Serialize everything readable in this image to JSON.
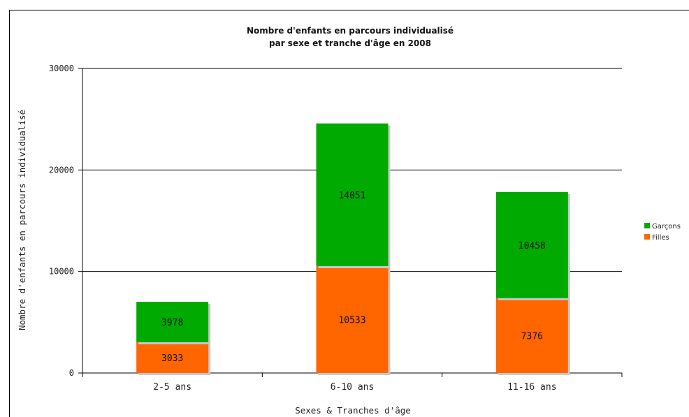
{
  "chart_data": {
    "type": "bar",
    "stacked": true,
    "title": [
      "Nombre d'enfants en parcours individualisé",
      "par sexe et tranche d'âge en 2008"
    ],
    "xlabel": "Sexes & Tranches d'âge",
    "ylabel": "Nombre d'enfants en parcours individualisé",
    "categories": [
      "2-5 ans",
      "6-10 ans",
      "11-16 ans"
    ],
    "ylim": [
      0,
      30000
    ],
    "yticks": [
      0,
      10000,
      20000,
      30000
    ],
    "grid": true,
    "legend_position": "right",
    "series": [
      {
        "name": "Filles",
        "values": [
          3033,
          10533,
          7376
        ],
        "color": "#ff6600"
      },
      {
        "name": "Garçons",
        "values": [
          3978,
          14051,
          10458
        ],
        "color": "#00aa00"
      }
    ],
    "legend_order": [
      "Garçons",
      "Filles"
    ]
  }
}
